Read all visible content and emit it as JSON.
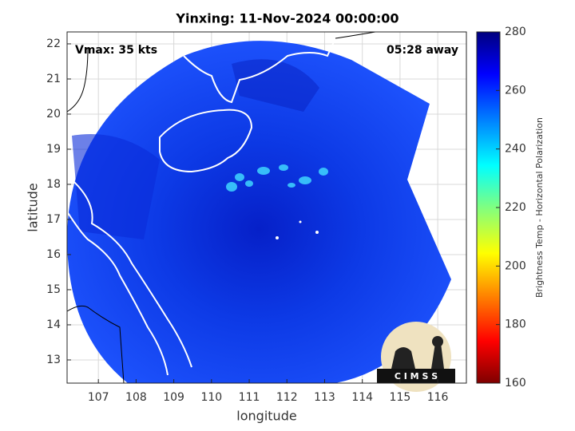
{
  "chart_data": {
    "type": "map",
    "title": "Yinxing: 11-Nov-2024 00:00:00",
    "annotations": [
      "Vmax: 35 kts",
      "05:28 away"
    ],
    "xlabel": "longitude",
    "ylabel": "latitude",
    "xlim": [
      106.17,
      116.76
    ],
    "ylim": [
      12.34,
      22.34
    ],
    "xticks": [
      107,
      108,
      109,
      110,
      111,
      112,
      113,
      114,
      115,
      116
    ],
    "yticks": [
      13,
      14,
      15,
      16,
      17,
      18,
      19,
      20,
      21,
      22
    ],
    "grid": true,
    "colorbar": {
      "label": "Brightness Temp - Horizontal Polarization",
      "lim": [
        160,
        280
      ],
      "ticks": [
        160,
        180,
        200,
        220,
        240,
        260,
        280
      ]
    },
    "logo": "C I M S S"
  }
}
